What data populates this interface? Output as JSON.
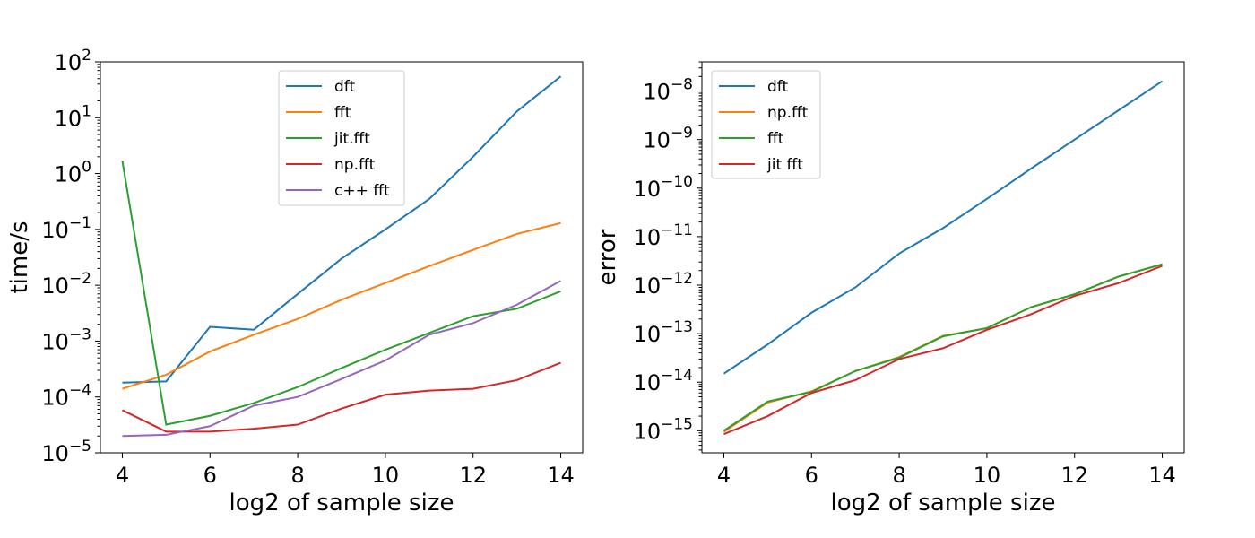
{
  "chart_data": [
    {
      "type": "line",
      "xlabel": "log2 of sample size",
      "ylabel": "time/s",
      "yscale": "log",
      "xlim": [
        3.5,
        14.5
      ],
      "ylim": [
        1e-05,
        100
      ],
      "xticks": [
        4,
        6,
        8,
        10,
        12,
        14
      ],
      "yticks": [
        -5,
        -4,
        -3,
        -2,
        -1,
        0,
        1,
        2
      ],
      "legend_position": "upper-center",
      "x": [
        4,
        5,
        6,
        7,
        8,
        9,
        10,
        11,
        12,
        13,
        14
      ],
      "series": [
        {
          "name": "dft",
          "color": "#1f77b4",
          "values": [
            0.00018,
            0.00019,
            0.0018,
            0.0016,
            0.007,
            0.03,
            0.1,
            0.35,
            2,
            13,
            55
          ]
        },
        {
          "name": "fft",
          "color": "#ff7f0e",
          "values": [
            0.00014,
            0.00025,
            0.00065,
            0.0013,
            0.0025,
            0.0055,
            0.011,
            0.022,
            0.043,
            0.083,
            0.13
          ]
        },
        {
          "name": "jit.fft",
          "color": "#2ca02c",
          "values": [
            1.7,
            3.2e-05,
            4.6e-05,
            7.8e-05,
            0.00015,
            0.00033,
            0.0007,
            0.0014,
            0.0028,
            0.0038,
            0.0078
          ]
        },
        {
          "name": "np.fft",
          "color": "#d62728",
          "values": [
            5.8e-05,
            2.4e-05,
            2.4e-05,
            2.7e-05,
            3.2e-05,
            6.2e-05,
            0.00011,
            0.00013,
            0.00014,
            0.0002,
            0.00041
          ]
        },
        {
          "name": "c++ fft",
          "color": "#9467bd",
          "values": [
            2e-05,
            2.1e-05,
            3e-05,
            7e-05,
            0.0001,
            0.00021,
            0.00045,
            0.0013,
            0.0021,
            0.0045,
            0.012
          ]
        }
      ]
    },
    {
      "type": "line",
      "xlabel": "log2 of sample size",
      "ylabel": "error",
      "yscale": "log",
      "xlim": [
        3.5,
        14.5
      ],
      "ylim": [
        3.5e-16,
        4e-08
      ],
      "xticks": [
        4,
        6,
        8,
        10,
        12,
        14
      ],
      "yticks": [
        -15,
        -14,
        -13,
        -12,
        -11,
        -10,
        -9,
        -8
      ],
      "legend_position": "upper-left",
      "x": [
        4,
        5,
        6,
        7,
        8,
        9,
        10,
        11,
        12,
        13,
        14
      ],
      "series": [
        {
          "name": "dft",
          "color": "#1f77b4",
          "values": [
            1.5e-14,
            6e-14,
            2.7e-13,
            9e-13,
            4.5e-12,
            1.5e-11,
            6e-11,
            2.5e-10,
            1e-09,
            4e-09,
            1.6e-08
          ]
        },
        {
          "name": "np.fft",
          "color": "#ff7f0e",
          "values": [
            9.5e-16,
            3.8e-15,
            6.5e-15,
            1.7e-14,
            3.3e-14,
            9e-14,
            1.3e-13,
            3.5e-13,
            6.5e-13,
            1.5e-12,
            2.7e-12
          ]
        },
        {
          "name": "fft",
          "color": "#2ca02c",
          "values": [
            1e-15,
            4e-15,
            6.3e-15,
            1.7e-14,
            3.2e-14,
            8.8e-14,
            1.3e-13,
            3.5e-13,
            6.5e-13,
            1.5e-12,
            2.7e-12
          ]
        },
        {
          "name": "jit fft",
          "color": "#d62728",
          "values": [
            8.5e-16,
            2e-15,
            6e-15,
            1.1e-14,
            3e-14,
            5e-14,
            1.2e-13,
            2.5e-13,
            6e-13,
            1.1e-12,
            2.5e-12
          ]
        }
      ]
    }
  ]
}
